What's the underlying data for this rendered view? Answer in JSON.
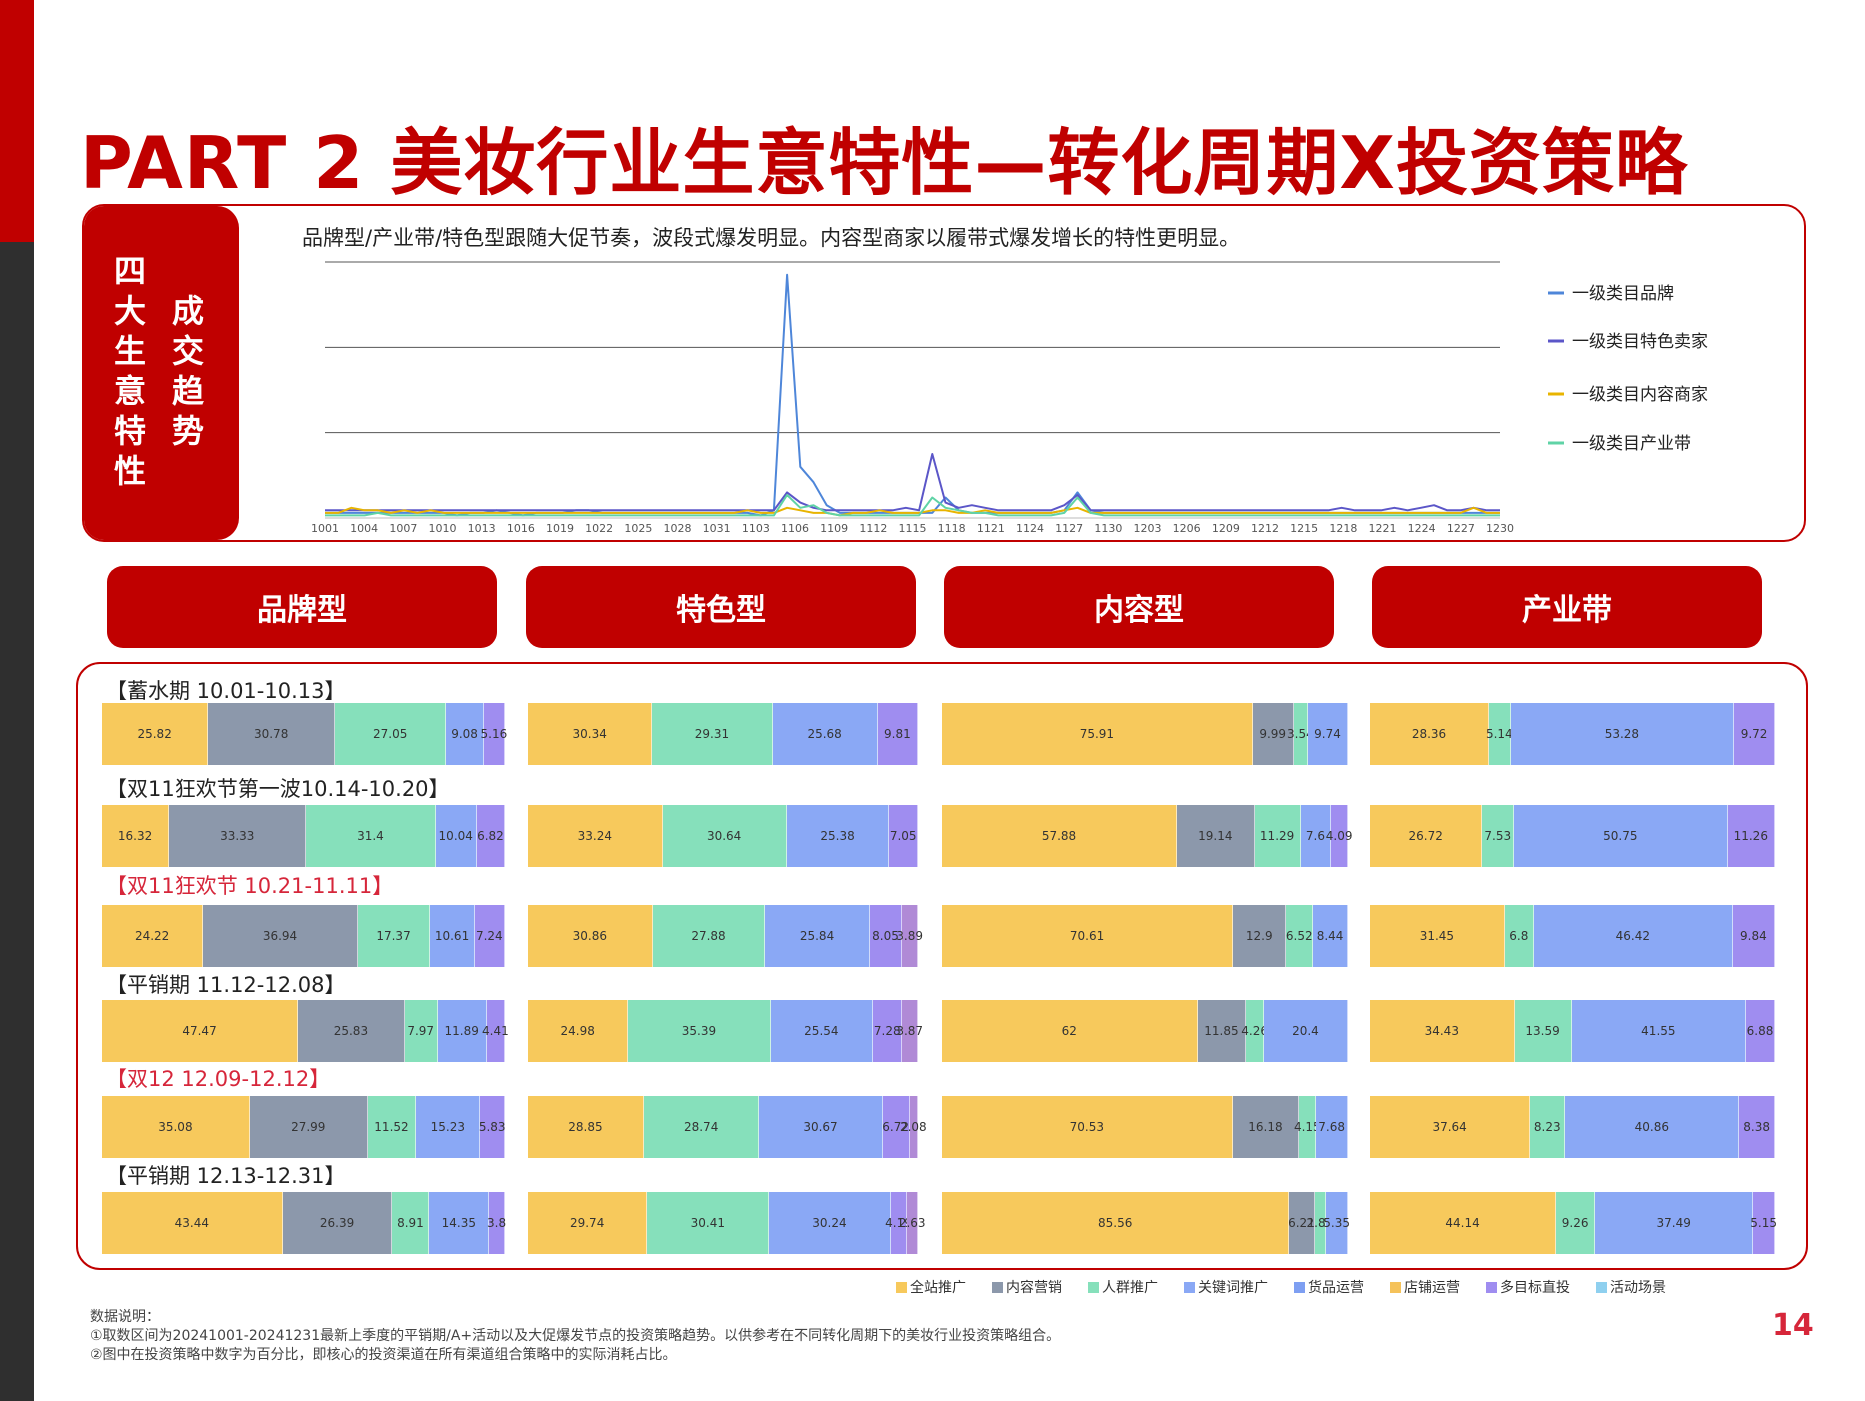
{
  "title": "PART 2 美妆行业生意特性—转化周期X投资策略",
  "sidebar_label_1": "四大生意特性",
  "sidebar_label_2": "成交趋势",
  "trend_description": "品牌型/产业带/特色型跟随大促节奏，波段式爆发明显。内容型商家以履带式爆发增长的特性更明显。",
  "type_headers": [
    "品牌型",
    "特色型",
    "内容型",
    "产业带"
  ],
  "periods": [
    {
      "label": "【蓄水期 10.01-10.13】",
      "highlight": false
    },
    {
      "label": "【双11狂欢节第一波10.14-10.20】",
      "highlight": false
    },
    {
      "label": "【双11狂欢节 10.21-11.11】",
      "highlight": true
    },
    {
      "label": "【平销期 11.12-12.08】",
      "highlight": false
    },
    {
      "label": "【双12  12.09-12.12】",
      "highlight": true
    },
    {
      "label": "【平销期  12.13-12.31】",
      "highlight": false
    }
  ],
  "notes": {
    "heading": "数据说明：",
    "line1": "①取数区间为20241001-20241231最新上季度的平销期/A+活动以及大促爆发节点的投资策略趋势。以供参考在不同转化周期下的美妆行业投资策略组合。",
    "line2": "②图中在投资策略中数字为百分比，即核心的投资渠道在所有渠道组合策略中的实际消耗占比。"
  },
  "page_number": "14",
  "channel_legend": [
    {
      "name": "全站推广",
      "color": "#f7c95c"
    },
    {
      "name": "内容营销",
      "color": "#8c98ab"
    },
    {
      "name": "人群推广",
      "color": "#86e0bb"
    },
    {
      "name": "关键词推广",
      "color": "#8aa8f5"
    },
    {
      "name": "货品运营",
      "color": "#7e9ff2"
    },
    {
      "name": "店铺运营",
      "color": "#f5c25a"
    },
    {
      "name": "多目标直投",
      "color": "#9f8df0"
    },
    {
      "name": "活动场景",
      "color": "#8fd0ef"
    }
  ],
  "chart_data": [
    {
      "type": "line",
      "title": "品牌型/产业带/特色型跟随大促节奏，波段式爆发明显。内容型商家以履带式爆发增长的特性更明显。",
      "x_tick_labels": [
        "1001",
        "1004",
        "1007",
        "1010",
        "1013",
        "1016",
        "1019",
        "1022",
        "1025",
        "1028",
        "1031",
        "1103",
        "1106",
        "1109",
        "1112",
        "1115",
        "1118",
        "1121",
        "1124",
        "1127",
        "1130",
        "1203",
        "1206",
        "1209",
        "1212",
        "1215",
        "1218",
        "1221",
        "1224",
        "1227",
        "1230"
      ],
      "ylim": [
        0,
        100
      ],
      "grid": true,
      "legend_position": "right",
      "series": [
        {
          "name": "一级类目品牌",
          "color": "#4e86d9",
          "values": [
            2,
            2,
            2,
            2,
            2,
            2,
            2,
            2,
            2,
            2,
            1,
            2,
            2,
            3,
            2,
            1,
            2,
            2,
            2,
            3,
            3,
            2,
            2,
            2,
            2,
            2,
            2,
            2,
            2,
            2,
            2,
            2,
            2,
            1,
            3,
            95,
            20,
            14,
            5,
            2,
            2,
            2,
            2,
            2,
            2,
            2,
            2,
            8,
            3,
            2,
            2,
            2,
            2,
            2,
            2,
            2,
            3,
            10,
            3,
            2,
            2,
            2,
            2,
            2,
            2,
            2,
            2,
            2,
            2,
            2,
            2,
            2,
            2,
            2,
            2,
            2,
            2,
            2,
            2,
            2,
            2,
            2,
            2,
            2,
            2,
            2,
            2,
            2,
            2,
            2
          ]
        },
        {
          "name": "一级类目特色卖家",
          "color": "#5b56c8",
          "values": [
            3,
            3,
            3,
            3,
            3,
            3,
            3,
            3,
            3,
            3,
            3,
            3,
            3,
            3,
            3,
            3,
            3,
            3,
            3,
            3,
            3,
            3,
            3,
            3,
            3,
            3,
            3,
            3,
            3,
            3,
            3,
            3,
            3,
            3,
            3,
            10,
            6,
            4,
            3,
            3,
            3,
            3,
            3,
            3,
            4,
            3,
            25,
            6,
            4,
            5,
            4,
            3,
            3,
            3,
            3,
            3,
            5,
            9,
            3,
            3,
            3,
            3,
            3,
            3,
            3,
            3,
            3,
            3,
            3,
            3,
            3,
            3,
            3,
            3,
            3,
            3,
            3,
            4,
            3,
            3,
            3,
            4,
            3,
            4,
            5,
            3,
            3,
            4,
            3,
            3
          ]
        },
        {
          "name": "一级类目内容商家",
          "color": "#e8b400",
          "values": [
            2,
            2,
            4,
            3,
            3,
            2,
            3,
            2,
            3,
            2,
            2,
            2,
            2,
            2,
            2,
            2,
            2,
            2,
            2,
            2,
            2,
            2,
            2,
            2,
            2,
            2,
            2,
            2,
            2,
            2,
            2,
            2,
            3,
            2,
            2,
            4,
            3,
            2,
            2,
            1,
            2,
            2,
            3,
            2,
            2,
            2,
            3,
            3,
            2,
            2,
            3,
            2,
            2,
            2,
            2,
            2,
            3,
            4,
            2,
            2,
            2,
            2,
            2,
            2,
            2,
            2,
            2,
            2,
            2,
            2,
            2,
            2,
            2,
            2,
            2,
            2,
            2,
            2,
            2,
            2,
            2,
            2,
            2,
            2,
            2,
            2,
            2,
            4,
            2,
            2
          ]
        },
        {
          "name": "一级类目产业带",
          "color": "#5fd3a6",
          "values": [
            1,
            1,
            1,
            1,
            2,
            1,
            1,
            1,
            1,
            1,
            1,
            1,
            1,
            1,
            1,
            1,
            1,
            1,
            1,
            1,
            1,
            1,
            1,
            1,
            1,
            1,
            1,
            1,
            1,
            1,
            1,
            1,
            1,
            1,
            1,
            9,
            4,
            5,
            2,
            1,
            1,
            1,
            1,
            1,
            1,
            1,
            8,
            4,
            3,
            2,
            2,
            1,
            1,
            1,
            1,
            1,
            2,
            8,
            2,
            1,
            1,
            1,
            1,
            1,
            1,
            1,
            1,
            1,
            1,
            1,
            1,
            1,
            1,
            1,
            1,
            1,
            1,
            1,
            1,
            1,
            1,
            1,
            1,
            1,
            1,
            1,
            1,
            1,
            1,
            1
          ]
        }
      ]
    },
    {
      "type": "bar",
      "stacked": true,
      "orientation": "horizontal",
      "unit": "%",
      "categories": [
        "品牌型",
        "特色型",
        "内容型",
        "产业带"
      ],
      "periods": [
        "【蓄水期 10.01-10.13】",
        "【双11狂欢节第一波10.14-10.20】",
        "【双11狂欢节 10.21-11.11】",
        "【平销期 11.12-12.08】",
        "【双12  12.09-12.12】",
        "【平销期  12.13-12.31】"
      ],
      "bars": [
        [
          [
            {
              "v": 25.82,
              "c": "#f7c95c"
            },
            {
              "v": 30.78,
              "c": "#8c98ab"
            },
            {
              "v": 27.05,
              "c": "#86e0bb"
            },
            {
              "v": 9.08,
              "c": "#8aa8f5"
            },
            {
              "v": 5.16,
              "c": "#9f8df0"
            }
          ],
          [
            {
              "v": 30.34,
              "c": "#f7c95c"
            },
            {
              "v": 29.31,
              "c": "#86e0bb"
            },
            {
              "v": 25.68,
              "c": "#8aa8f5"
            },
            {
              "v": 9.81,
              "c": "#9f8df0"
            }
          ],
          [
            {
              "v": 75.91,
              "c": "#f7c95c"
            },
            {
              "v": 9.99,
              "c": "#8c98ab"
            },
            {
              "v": 3.54,
              "c": "#86e0bb"
            },
            {
              "v": 9.74,
              "c": "#8aa8f5"
            }
          ],
          [
            {
              "v": 28.36,
              "c": "#f7c95c"
            },
            {
              "v": 5.14,
              "c": "#86e0bb"
            },
            {
              "v": 53.28,
              "c": "#8aa8f5"
            },
            {
              "v": 9.72,
              "c": "#9f8df0"
            }
          ]
        ],
        [
          [
            {
              "v": 16.32,
              "c": "#f7c95c"
            },
            {
              "v": 33.33,
              "c": "#8c98ab"
            },
            {
              "v": 31.4,
              "c": "#86e0bb"
            },
            {
              "v": 10.04,
              "c": "#8aa8f5"
            },
            {
              "v": 6.82,
              "c": "#9f8df0"
            }
          ],
          [
            {
              "v": 33.24,
              "c": "#f7c95c"
            },
            {
              "v": 30.64,
              "c": "#86e0bb"
            },
            {
              "v": 25.38,
              "c": "#8aa8f5"
            },
            {
              "v": 7.05,
              "c": "#9f8df0"
            }
          ],
          [
            {
              "v": 57.88,
              "c": "#f7c95c"
            },
            {
              "v": 19.14,
              "c": "#8c98ab"
            },
            {
              "v": 11.29,
              "c": "#86e0bb"
            },
            {
              "v": 7.6,
              "c": "#8aa8f5"
            },
            {
              "v": 4.09,
              "c": "#9f8df0"
            }
          ],
          [
            {
              "v": 26.72,
              "c": "#f7c95c"
            },
            {
              "v": 7.53,
              "c": "#86e0bb"
            },
            {
              "v": 50.75,
              "c": "#8aa8f5"
            },
            {
              "v": 11.26,
              "c": "#9f8df0"
            }
          ]
        ],
        [
          [
            {
              "v": 24.22,
              "c": "#f7c95c"
            },
            {
              "v": 36.94,
              "c": "#8c98ab"
            },
            {
              "v": 17.37,
              "c": "#86e0bb"
            },
            {
              "v": 10.61,
              "c": "#8aa8f5"
            },
            {
              "v": 7.24,
              "c": "#9f8df0"
            }
          ],
          [
            {
              "v": 30.86,
              "c": "#f7c95c"
            },
            {
              "v": 27.88,
              "c": "#86e0bb"
            },
            {
              "v": 25.84,
              "c": "#8aa8f5"
            },
            {
              "v": 8.05,
              "c": "#9f8df0"
            },
            {
              "v": 3.89,
              "c": "#b08ad6"
            }
          ],
          [
            {
              "v": 70.61,
              "c": "#f7c95c"
            },
            {
              "v": 12.9,
              "c": "#8c98ab"
            },
            {
              "v": 6.52,
              "c": "#86e0bb"
            },
            {
              "v": 8.44,
              "c": "#8aa8f5"
            }
          ],
          [
            {
              "v": 31.45,
              "c": "#f7c95c"
            },
            {
              "v": 6.8,
              "c": "#86e0bb"
            },
            {
              "v": 46.42,
              "c": "#8aa8f5"
            },
            {
              "v": 9.84,
              "c": "#9f8df0"
            }
          ]
        ],
        [
          [
            {
              "v": 47.47,
              "c": "#f7c95c"
            },
            {
              "v": 25.83,
              "c": "#8c98ab"
            },
            {
              "v": 7.97,
              "c": "#86e0bb"
            },
            {
              "v": 11.89,
              "c": "#8aa8f5"
            },
            {
              "v": 4.41,
              "c": "#9f8df0"
            }
          ],
          [
            {
              "v": 24.98,
              "c": "#f7c95c"
            },
            {
              "v": 35.39,
              "c": "#86e0bb"
            },
            {
              "v": 25.54,
              "c": "#8aa8f5"
            },
            {
              "v": 7.28,
              "c": "#9f8df0"
            },
            {
              "v": 3.87,
              "c": "#b08ad6"
            }
          ],
          [
            {
              "v": 62,
              "c": "#f7c95c"
            },
            {
              "v": 11.85,
              "c": "#8c98ab"
            },
            {
              "v": 4.26,
              "c": "#86e0bb"
            },
            {
              "v": 20.4,
              "c": "#8aa8f5"
            }
          ],
          [
            {
              "v": 34.43,
              "c": "#f7c95c"
            },
            {
              "v": 13.59,
              "c": "#86e0bb"
            },
            {
              "v": 41.55,
              "c": "#8aa8f5"
            },
            {
              "v": 6.88,
              "c": "#9f8df0"
            }
          ]
        ],
        [
          [
            {
              "v": 35.08,
              "c": "#f7c95c"
            },
            {
              "v": 27.99,
              "c": "#8c98ab"
            },
            {
              "v": 11.52,
              "c": "#86e0bb"
            },
            {
              "v": 15.23,
              "c": "#8aa8f5"
            },
            {
              "v": 5.83,
              "c": "#9f8df0"
            }
          ],
          [
            {
              "v": 28.85,
              "c": "#f7c95c"
            },
            {
              "v": 28.74,
              "c": "#86e0bb"
            },
            {
              "v": 30.67,
              "c": "#8aa8f5"
            },
            {
              "v": 6.72,
              "c": "#9f8df0"
            },
            {
              "v": 2.08,
              "c": "#b08ad6"
            }
          ],
          [
            {
              "v": 70.53,
              "c": "#f7c95c"
            },
            {
              "v": 16.18,
              "c": "#8c98ab"
            },
            {
              "v": 4.15,
              "c": "#86e0bb"
            },
            {
              "v": 7.68,
              "c": "#8aa8f5"
            }
          ],
          [
            {
              "v": 37.64,
              "c": "#f7c95c"
            },
            {
              "v": 8.23,
              "c": "#86e0bb"
            },
            {
              "v": 40.86,
              "c": "#8aa8f5"
            },
            {
              "v": 8.38,
              "c": "#9f8df0"
            }
          ]
        ],
        [
          [
            {
              "v": 43.44,
              "c": "#f7c95c"
            },
            {
              "v": 26.39,
              "c": "#8c98ab"
            },
            {
              "v": 8.91,
              "c": "#86e0bb"
            },
            {
              "v": 14.35,
              "c": "#8aa8f5"
            },
            {
              "v": 3.8,
              "c": "#9f8df0"
            }
          ],
          [
            {
              "v": 29.74,
              "c": "#f7c95c"
            },
            {
              "v": 30.41,
              "c": "#86e0bb"
            },
            {
              "v": 30.24,
              "c": "#8aa8f5"
            },
            {
              "v": 4.19,
              "c": "#9f8df0"
            },
            {
              "v": 2.63,
              "c": "#b08ad6"
            }
          ],
          [
            {
              "v": 85.56,
              "c": "#f7c95c"
            },
            {
              "v": 6.21,
              "c": "#8c98ab"
            },
            {
              "v": 2.88,
              "c": "#86e0bb"
            },
            {
              "v": 5.35,
              "c": "#8aa8f5"
            }
          ],
          [
            {
              "v": 44.14,
              "c": "#f7c95c"
            },
            {
              "v": 9.26,
              "c": "#86e0bb"
            },
            {
              "v": 37.49,
              "c": "#8aa8f5"
            },
            {
              "v": 5.15,
              "c": "#9f8df0"
            }
          ]
        ]
      ]
    }
  ]
}
